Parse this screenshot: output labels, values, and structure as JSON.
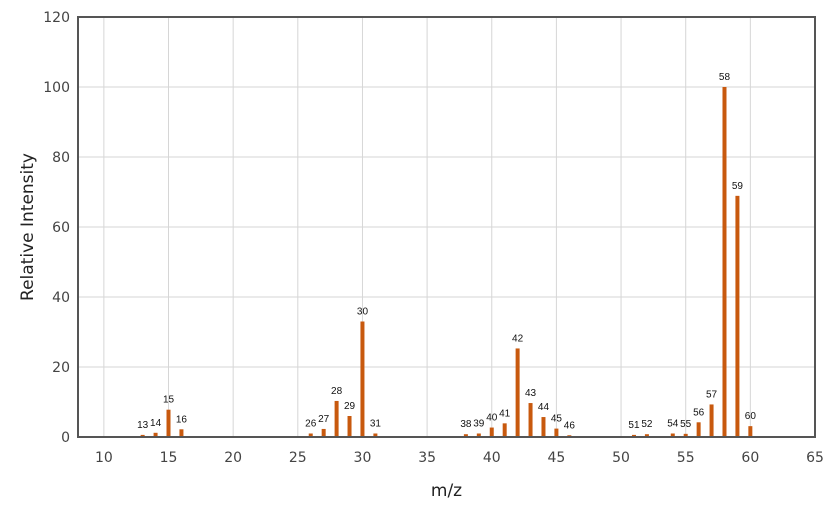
{
  "chart_data": {
    "type": "bar",
    "title": "",
    "xlabel": "m/z",
    "ylabel": "Relative Intensity",
    "xlim": [
      8,
      65
    ],
    "ylim": [
      0,
      120
    ],
    "x_ticks": [
      10,
      15,
      20,
      25,
      30,
      35,
      40,
      45,
      50,
      55,
      60,
      65
    ],
    "y_ticks": [
      0,
      20,
      40,
      60,
      80,
      100,
      120
    ],
    "grid": true,
    "legend": "none",
    "bar_color": "#c8590e",
    "series": [
      {
        "x": [
          13,
          14,
          15,
          16,
          26,
          27,
          28,
          29,
          30,
          31,
          38,
          39,
          40,
          41,
          42,
          43,
          44,
          45,
          46,
          51,
          52,
          54,
          55,
          56,
          57,
          58,
          59,
          60
        ],
        "values": [
          0.6,
          1.2,
          7.8,
          2.2,
          1.0,
          2.3,
          10.3,
          6.0,
          33.0,
          1.0,
          0.8,
          1.0,
          2.7,
          3.9,
          25.3,
          9.7,
          5.7,
          2.4,
          0.5,
          0.6,
          0.8,
          1.0,
          0.9,
          4.2,
          9.3,
          100.0,
          68.9,
          3.1
        ],
        "labels": [
          "13",
          "14",
          "15",
          "16",
          "26",
          "27",
          "28",
          "29",
          "30",
          "31",
          "38",
          "39",
          "40",
          "41",
          "42",
          "43",
          "44",
          "45",
          "46",
          "51",
          "52",
          "54",
          "55",
          "56",
          "57",
          "58",
          "59",
          "60"
        ]
      }
    ]
  }
}
